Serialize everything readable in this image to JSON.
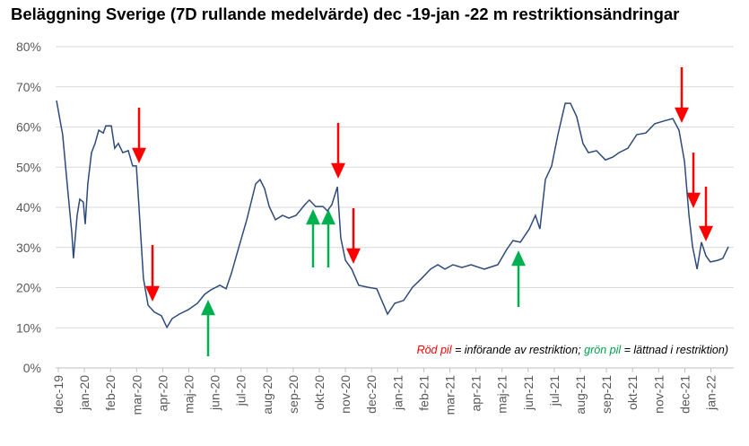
{
  "chart_data": {
    "type": "line",
    "title": "Beläggning Sverige (7D rullande medelvärde) dec -19-jan -22 m restriktionsändringar",
    "color": "#2e4a7a",
    "x": [
      -0.07,
      0.17,
      0.34,
      0.52,
      0.58,
      0.72,
      0.82,
      0.96,
      1.03,
      1.13,
      1.27,
      1.41,
      1.55,
      1.72,
      1.82,
      2.03,
      2.16,
      2.3,
      2.47,
      2.68,
      2.85,
      2.99,
      3.09,
      3.26,
      3.44,
      3.68,
      3.95,
      4.16,
      4.36,
      4.64,
      4.98,
      5.33,
      5.6,
      5.84,
      6.19,
      6.43,
      6.63,
      6.87,
      7.22,
      7.56,
      7.73,
      7.9,
      8.08,
      8.32,
      8.59,
      8.83,
      9.11,
      9.45,
      9.62,
      9.86,
      10.14,
      10.31,
      10.48,
      10.69,
      10.82,
      11.0,
      11.24,
      11.51,
      11.86,
      12.2,
      12.47,
      12.61,
      12.89,
      13.23,
      13.57,
      13.92,
      14.26,
      14.54,
      14.81,
      15.12,
      15.46,
      15.81,
      16.32,
      16.84,
      17.18,
      17.42,
      17.7,
      18.04,
      18.28,
      18.45,
      18.66,
      18.9,
      19.14,
      19.42,
      19.62,
      19.86,
      20.1,
      20.31,
      20.62,
      20.96,
      21.24,
      21.48,
      21.82,
      22.16,
      22.51,
      22.85,
      23.2,
      23.54,
      23.78,
      23.99,
      24.16,
      24.3,
      24.47,
      24.64,
      24.81,
      24.98,
      25.26,
      25.46,
      25.67
    ],
    "values": [
      66.6,
      58,
      45.8,
      33.5,
      27.3,
      38,
      42,
      41.3,
      35.8,
      45.8,
      53.6,
      55.9,
      59.2,
      58.5,
      60.3,
      60.3,
      54.7,
      55.9,
      53.6,
      54.1,
      50.3,
      50.3,
      40.2,
      22.3,
      15.6,
      13.9,
      13,
      10.1,
      12.3,
      13.4,
      14.5,
      16.1,
      18.3,
      19.4,
      20.6,
      19.7,
      23.5,
      29,
      36.9,
      45.8,
      46.9,
      44.7,
      40.2,
      36.9,
      38,
      37.3,
      38,
      40.7,
      41.8,
      40.2,
      40.2,
      39.1,
      40.7,
      45.1,
      32.4,
      26.8,
      24.6,
      20.6,
      20.1,
      19.7,
      15.6,
      13.4,
      16.1,
      16.8,
      20.1,
      22.3,
      24.6,
      25.7,
      24.6,
      25.7,
      25,
      25.7,
      24.6,
      25.7,
      29.5,
      31.7,
      31.3,
      34.6,
      38,
      34.6,
      46.9,
      50.3,
      58.1,
      65.9,
      65.9,
      62.6,
      55.9,
      53.6,
      54.1,
      51.8,
      52.5,
      53.6,
      54.7,
      58.1,
      58.5,
      60.8,
      61.5,
      62.1,
      59.2,
      51.4,
      38,
      30.2,
      24.6,
      31.3,
      27.9,
      26.4,
      26.8,
      27.3,
      30.2
    ],
    "xlim": [
      -0.1,
      25.8
    ],
    "xticks": [
      {
        "value": 0,
        "label": "dec-19"
      },
      {
        "value": 1,
        "label": "jan-20"
      },
      {
        "value": 2,
        "label": "feb-20"
      },
      {
        "value": 3,
        "label": "mar-20"
      },
      {
        "value": 4,
        "label": "apr-20"
      },
      {
        "value": 5,
        "label": "maj-20"
      },
      {
        "value": 6,
        "label": "jun-20"
      },
      {
        "value": 7,
        "label": "jul-20"
      },
      {
        "value": 8,
        "label": "aug-20"
      },
      {
        "value": 9,
        "label": "sep-20"
      },
      {
        "value": 10,
        "label": "okt-20"
      },
      {
        "value": 11,
        "label": "nov-20"
      },
      {
        "value": 12,
        "label": "dec-20"
      },
      {
        "value": 13,
        "label": "jan-21"
      },
      {
        "value": 14,
        "label": "feb-21"
      },
      {
        "value": 15,
        "label": "mar-21"
      },
      {
        "value": 16,
        "label": "apr-21"
      },
      {
        "value": 17,
        "label": "maj-21"
      },
      {
        "value": 18,
        "label": "jun-21"
      },
      {
        "value": 19,
        "label": "jul-21"
      },
      {
        "value": 20,
        "label": "aug-21"
      },
      {
        "value": 21,
        "label": "sep-21"
      },
      {
        "value": 22,
        "label": "okt-21"
      },
      {
        "value": 23,
        "label": "nov-21"
      },
      {
        "value": 24,
        "label": "dec-21"
      },
      {
        "value": 25,
        "label": "jan-22"
      }
    ],
    "ylim": [
      0,
      80
    ],
    "yticks": [
      {
        "value": 0,
        "label": "0%"
      },
      {
        "value": 10,
        "label": "10%"
      },
      {
        "value": 20,
        "label": "20%"
      },
      {
        "value": 30,
        "label": "30%"
      },
      {
        "value": 40,
        "label": "40%"
      },
      {
        "value": 50,
        "label": "50%"
      },
      {
        "value": 60,
        "label": "60%"
      },
      {
        "value": 70,
        "label": "70%"
      },
      {
        "value": 80,
        "label": "80%"
      }
    ],
    "grid": true,
    "annotation_parts": [
      {
        "text": "Röd pil",
        "color": "#ff0000"
      },
      {
        "text": " = införande av restriktion; ",
        "color": "#000000"
      },
      {
        "text": "grön pil",
        "color": "#00a050"
      },
      {
        "text": " = lättnad i restriktion)",
        "color": "#000000"
      }
    ]
  }
}
